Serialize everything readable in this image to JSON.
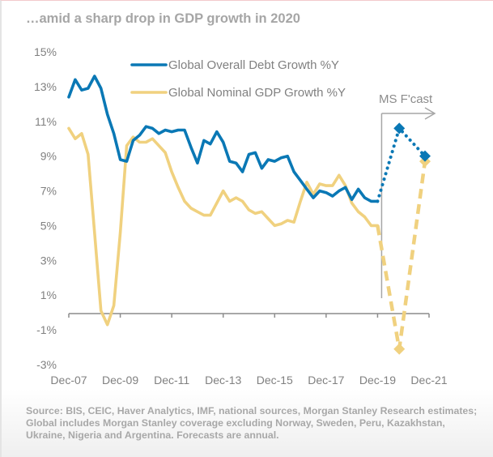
{
  "chart_data": {
    "type": "line",
    "title": "…amid a sharp drop in GDP growth in 2020",
    "xlabel": "",
    "ylabel": "",
    "ylim": [
      -3,
      15
    ],
    "yticks": [
      15,
      13,
      11,
      9,
      7,
      5,
      3,
      1,
      -1,
      -3
    ],
    "ytick_labels": [
      "15%",
      "13%",
      "11%",
      "9%",
      "7%",
      "5%",
      "3%",
      "1%",
      "-1%",
      "-3%"
    ],
    "xlim": [
      "Dec-07",
      "Dec-21"
    ],
    "xtick_labels": [
      "Dec-07",
      "Dec-09",
      "Dec-11",
      "Dec-13",
      "Dec-15",
      "Dec-17",
      "Dec-19",
      "Dec-21"
    ],
    "x_frequency": "quarterly history (Dec-07 to Dec-19), annual forecasts (Dec-20, Dec-21)",
    "grid": false,
    "legend_position": "top-center",
    "annotation": {
      "text": "MS  F'cast",
      "marks_start": "Dec-19",
      "arrow_direction": "right"
    },
    "series": [
      {
        "name": "Global Overall Debt Growth %Y",
        "color": "#0a78b5",
        "history": [
          12.4,
          13.4,
          12.8,
          12.9,
          13.6,
          12.9,
          11.4,
          10.3,
          8.8,
          8.7,
          9.9,
          10.2,
          10.7,
          10.6,
          10.3,
          10.5,
          10.4,
          10.5,
          10.5,
          9.5,
          8.6,
          9.9,
          9.7,
          10.4,
          9.8,
          8.7,
          8.6,
          8.1,
          9.1,
          9.2,
          8.3,
          8.8,
          8.7,
          8.9,
          9.0,
          8.1,
          7.6,
          7.1,
          6.6,
          7.0,
          6.9,
          6.7,
          7.0,
          7.2,
          6.5,
          7.1,
          6.6,
          6.4,
          6.4
        ],
        "forecast": {
          "x": [
            "Dec-20",
            "Dec-21"
          ],
          "values": [
            10.6,
            9.0
          ]
        },
        "forecast_style": "dotted"
      },
      {
        "name": "Global Nominal GDP Growth %Y",
        "color": "#f0d17f",
        "history": [
          10.6,
          10.0,
          10.3,
          9.1,
          4.6,
          0.1,
          -0.7,
          0.4,
          4.6,
          9.6,
          10.1,
          9.8,
          9.8,
          10.0,
          9.6,
          9.2,
          8.1,
          7.2,
          6.4,
          6.0,
          5.8,
          5.6,
          5.6,
          6.3,
          7.0,
          6.4,
          6.6,
          6.4,
          5.9,
          5.7,
          5.8,
          5.4,
          5.0,
          5.1,
          5.3,
          5.2,
          6.4,
          7.5,
          6.8,
          7.4,
          7.3,
          7.3,
          7.9,
          7.3,
          6.3,
          5.8,
          5.5,
          5.0,
          5.0
        ],
        "forecast": {
          "x": [
            "Dec-20",
            "Dec-21"
          ],
          "values": [
            -2.1,
            8.7
          ]
        },
        "forecast_style": "dashed"
      }
    ]
  },
  "page": {
    "title": "…amid a sharp drop in GDP growth in 2020",
    "source": "Source: BIS, CEIC, Haver Analytics, IMF, national sources, Morgan Stanley Research estimates; Global includes Morgan Stanley coverage excluding Norway, Sweden, Peru, Kazakhstan, Ukraine, Nigeria and Argentina. Forecasts are annual."
  }
}
